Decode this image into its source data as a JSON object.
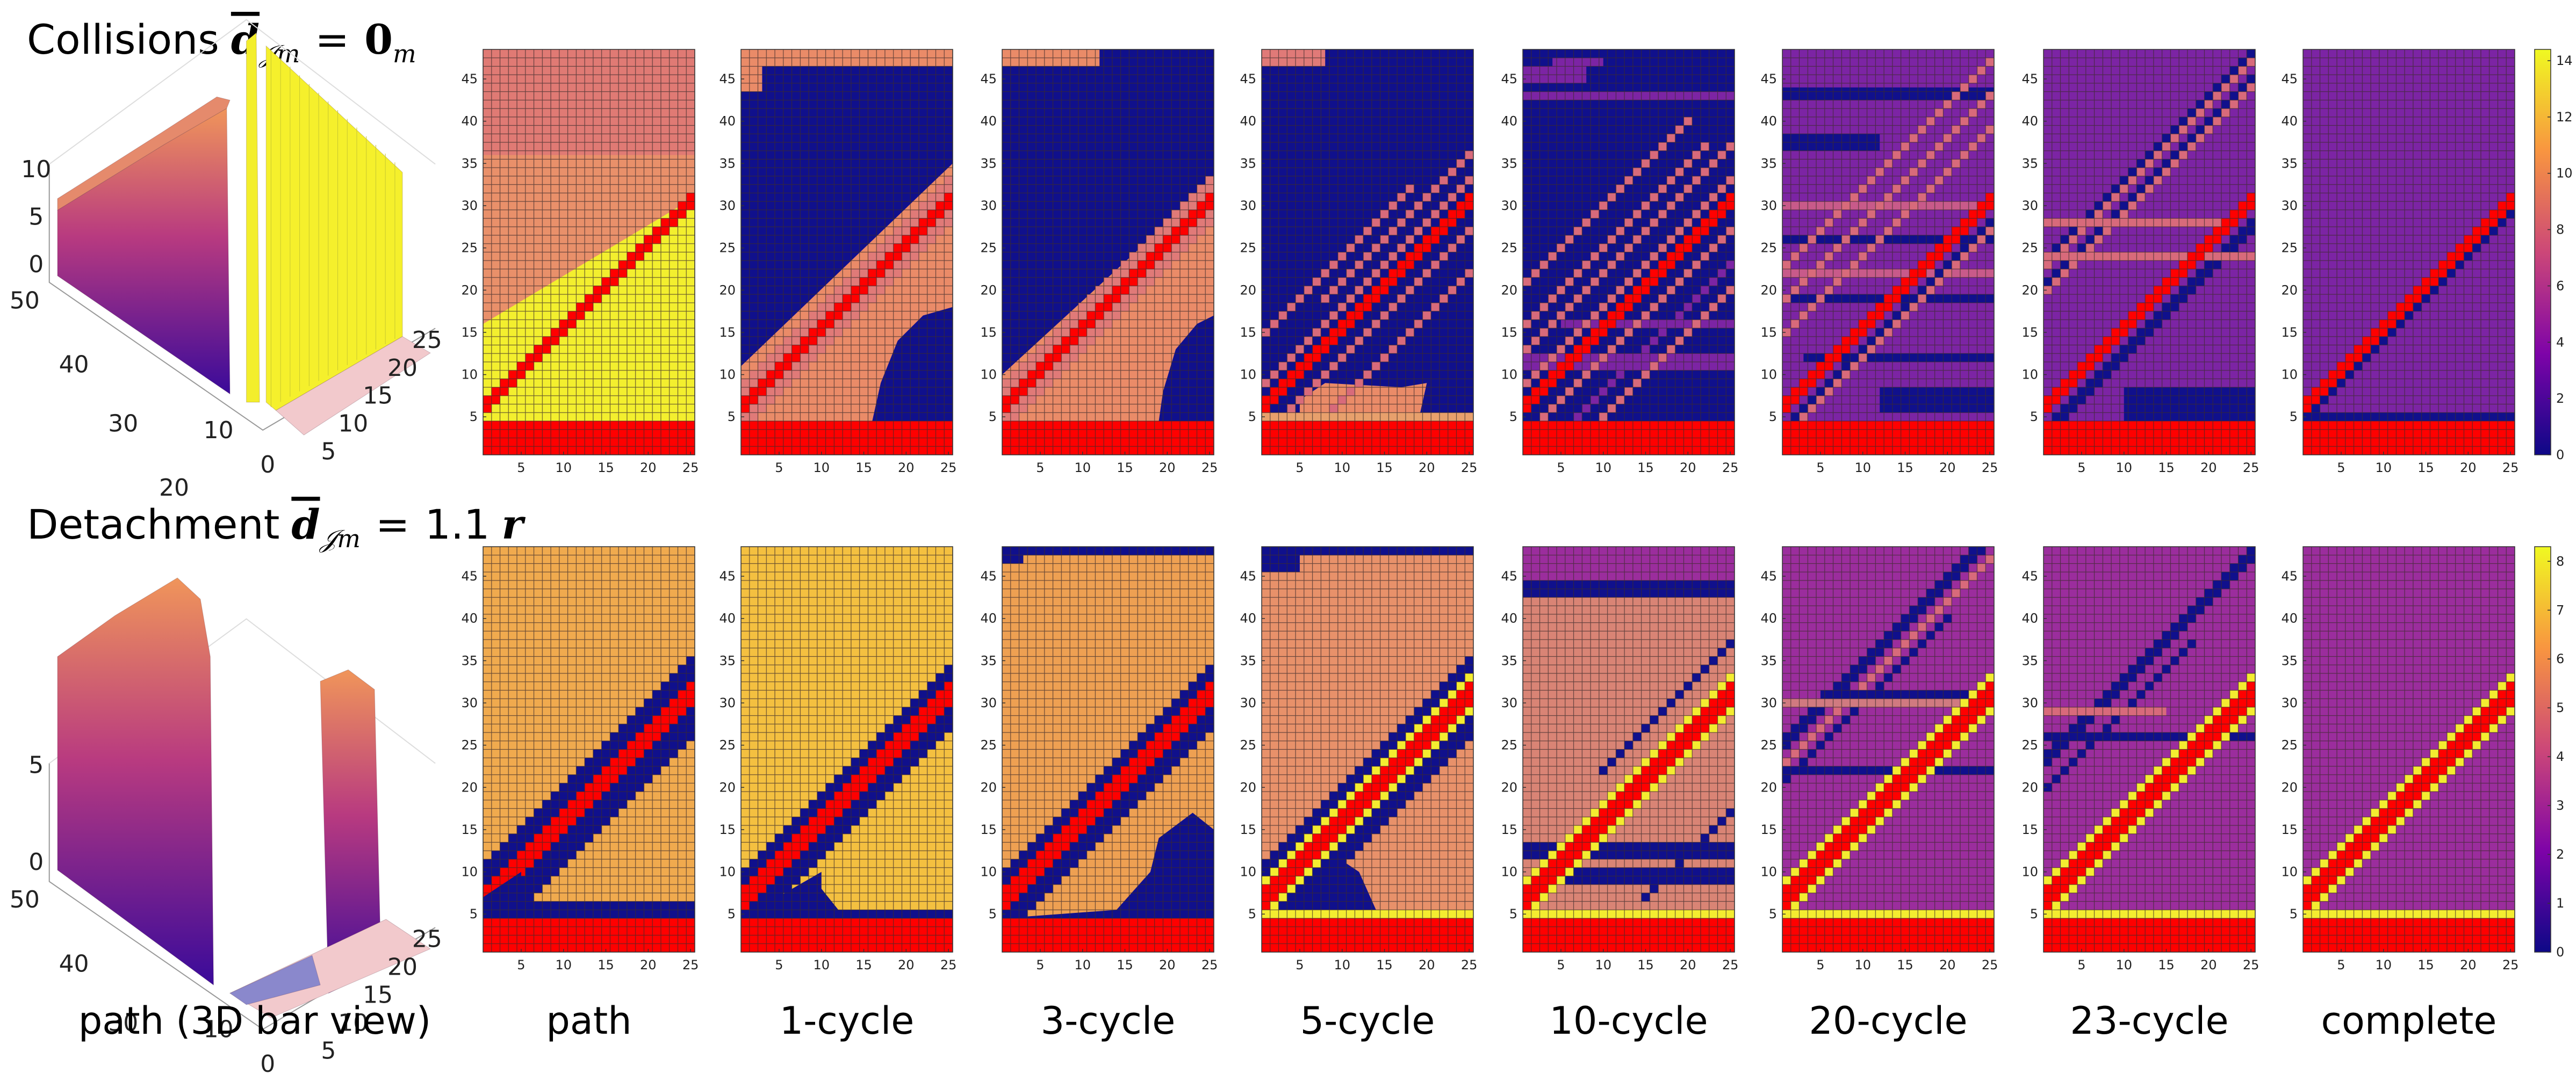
{
  "rows": [
    {
      "title": {
        "label": "Collisions",
        "symbol": "d",
        "symbol_subscript": "𝒥m",
        "relation": "=",
        "rhs": "0",
        "rhs_subscript": "m"
      },
      "zticks_3d": [
        0,
        5,
        10
      ],
      "colorbar": {
        "clim": [
          0,
          14.4
        ],
        "ticks": [
          0,
          2,
          4,
          6,
          8,
          10,
          12,
          14
        ]
      }
    },
    {
      "title": {
        "label": "Detachment",
        "symbol": "d",
        "symbol_subscript": "𝒥m",
        "relation": "=",
        "rhs": "1.1",
        "rhs_unit": "r"
      },
      "zticks_3d": [
        0,
        5
      ],
      "colorbar": {
        "clim": [
          0,
          8.3
        ],
        "ticks": [
          0,
          1,
          2,
          3,
          4,
          5,
          6,
          7,
          8
        ]
      }
    }
  ],
  "columns": [
    "path (3D bar view)",
    "path",
    "1-cycle",
    "3-cycle",
    "5-cycle",
    "10-cycle",
    "20-cycle",
    "23-cycle",
    "complete"
  ],
  "heatmap_axes": {
    "xlim": [
      0.5,
      25.5
    ],
    "ylim": [
      0.5,
      48.5
    ],
    "xticks": [
      5,
      10,
      15,
      20,
      25
    ],
    "yticks": [
      5,
      10,
      15,
      20,
      25,
      30,
      35,
      40,
      45
    ]
  },
  "bar3d_axes": {
    "xticks": [
      5,
      10,
      15,
      20,
      25
    ],
    "yticks": [
      0,
      10,
      20,
      30,
      40,
      50
    ]
  }
}
